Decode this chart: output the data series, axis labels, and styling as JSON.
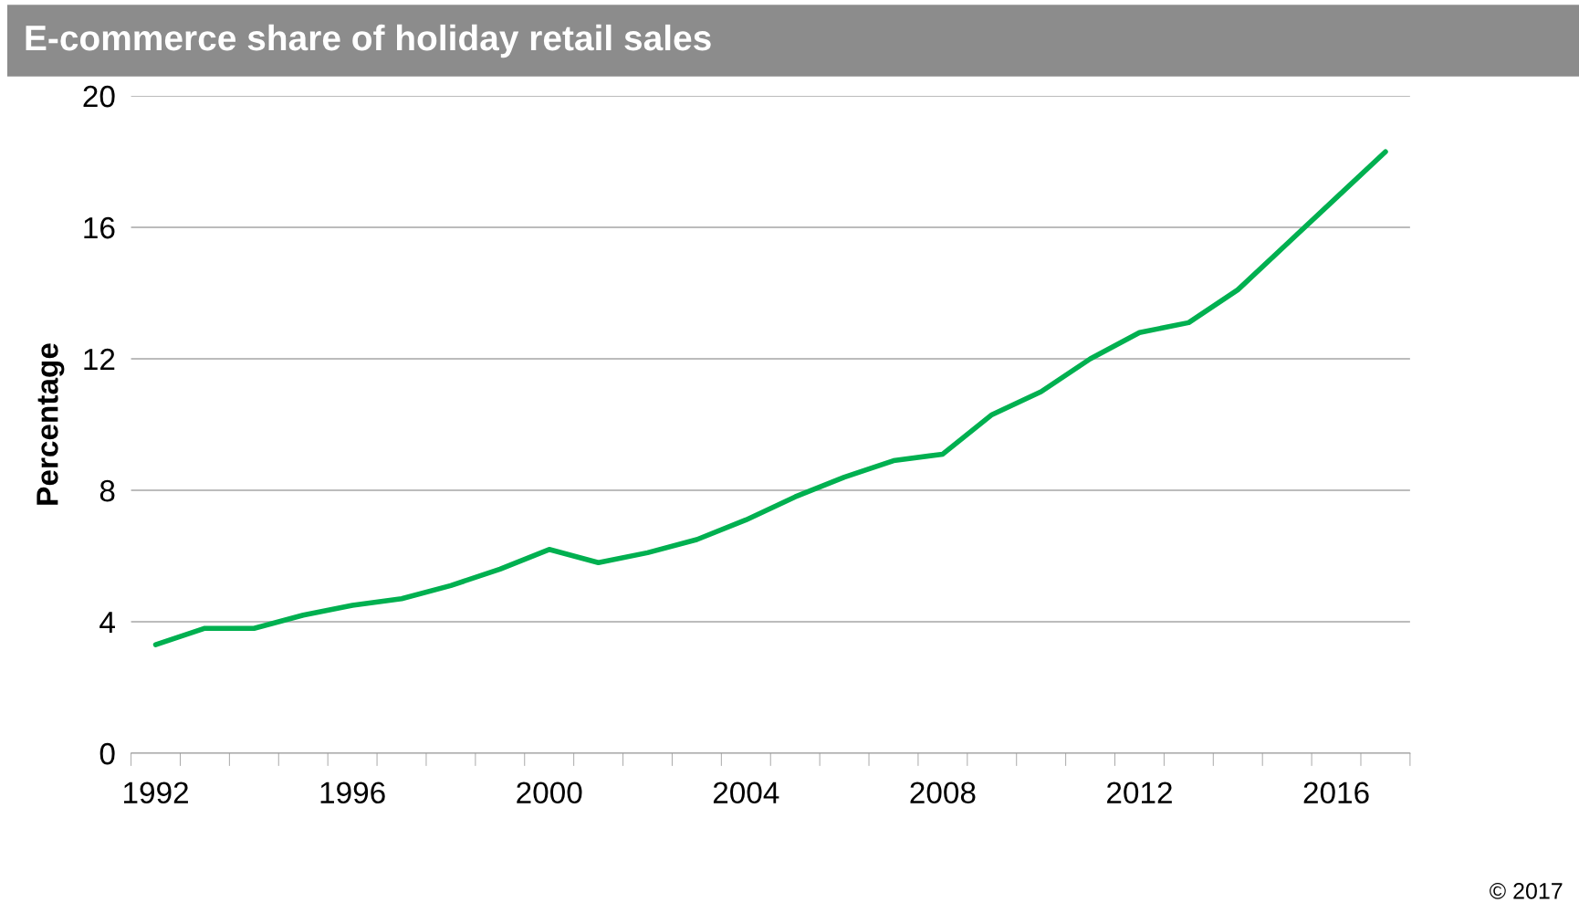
{
  "chart_data": {
    "type": "line",
    "title": "E-commerce share of holiday retail sales",
    "ylabel": "Percentage",
    "categories": [
      "1992",
      null,
      null,
      null,
      "1996",
      null,
      null,
      null,
      "2000",
      null,
      null,
      null,
      "2004",
      null,
      null,
      null,
      "2008",
      null,
      null,
      null,
      "2012",
      null,
      null,
      null,
      "2016",
      null
    ],
    "series": [
      {
        "color": "#00b050",
        "values": [
          3.3,
          3.8,
          3.8,
          4.2,
          4.5,
          4.7,
          5.1,
          5.6,
          6.2,
          5.8,
          6.1,
          6.5,
          7.1,
          7.8,
          8.4,
          8.9,
          9.1,
          10.3,
          11.0,
          12.0,
          12.8,
          13.1,
          14.1,
          15.5,
          16.9,
          18.3
        ]
      }
    ],
    "ylim": [
      0,
      20
    ],
    "yticks": [
      0,
      4,
      8,
      12,
      16,
      20
    ],
    "grid": "y",
    "marker": "none",
    "line_style": "solid",
    "annotations": [
      "© 2017"
    ]
  }
}
